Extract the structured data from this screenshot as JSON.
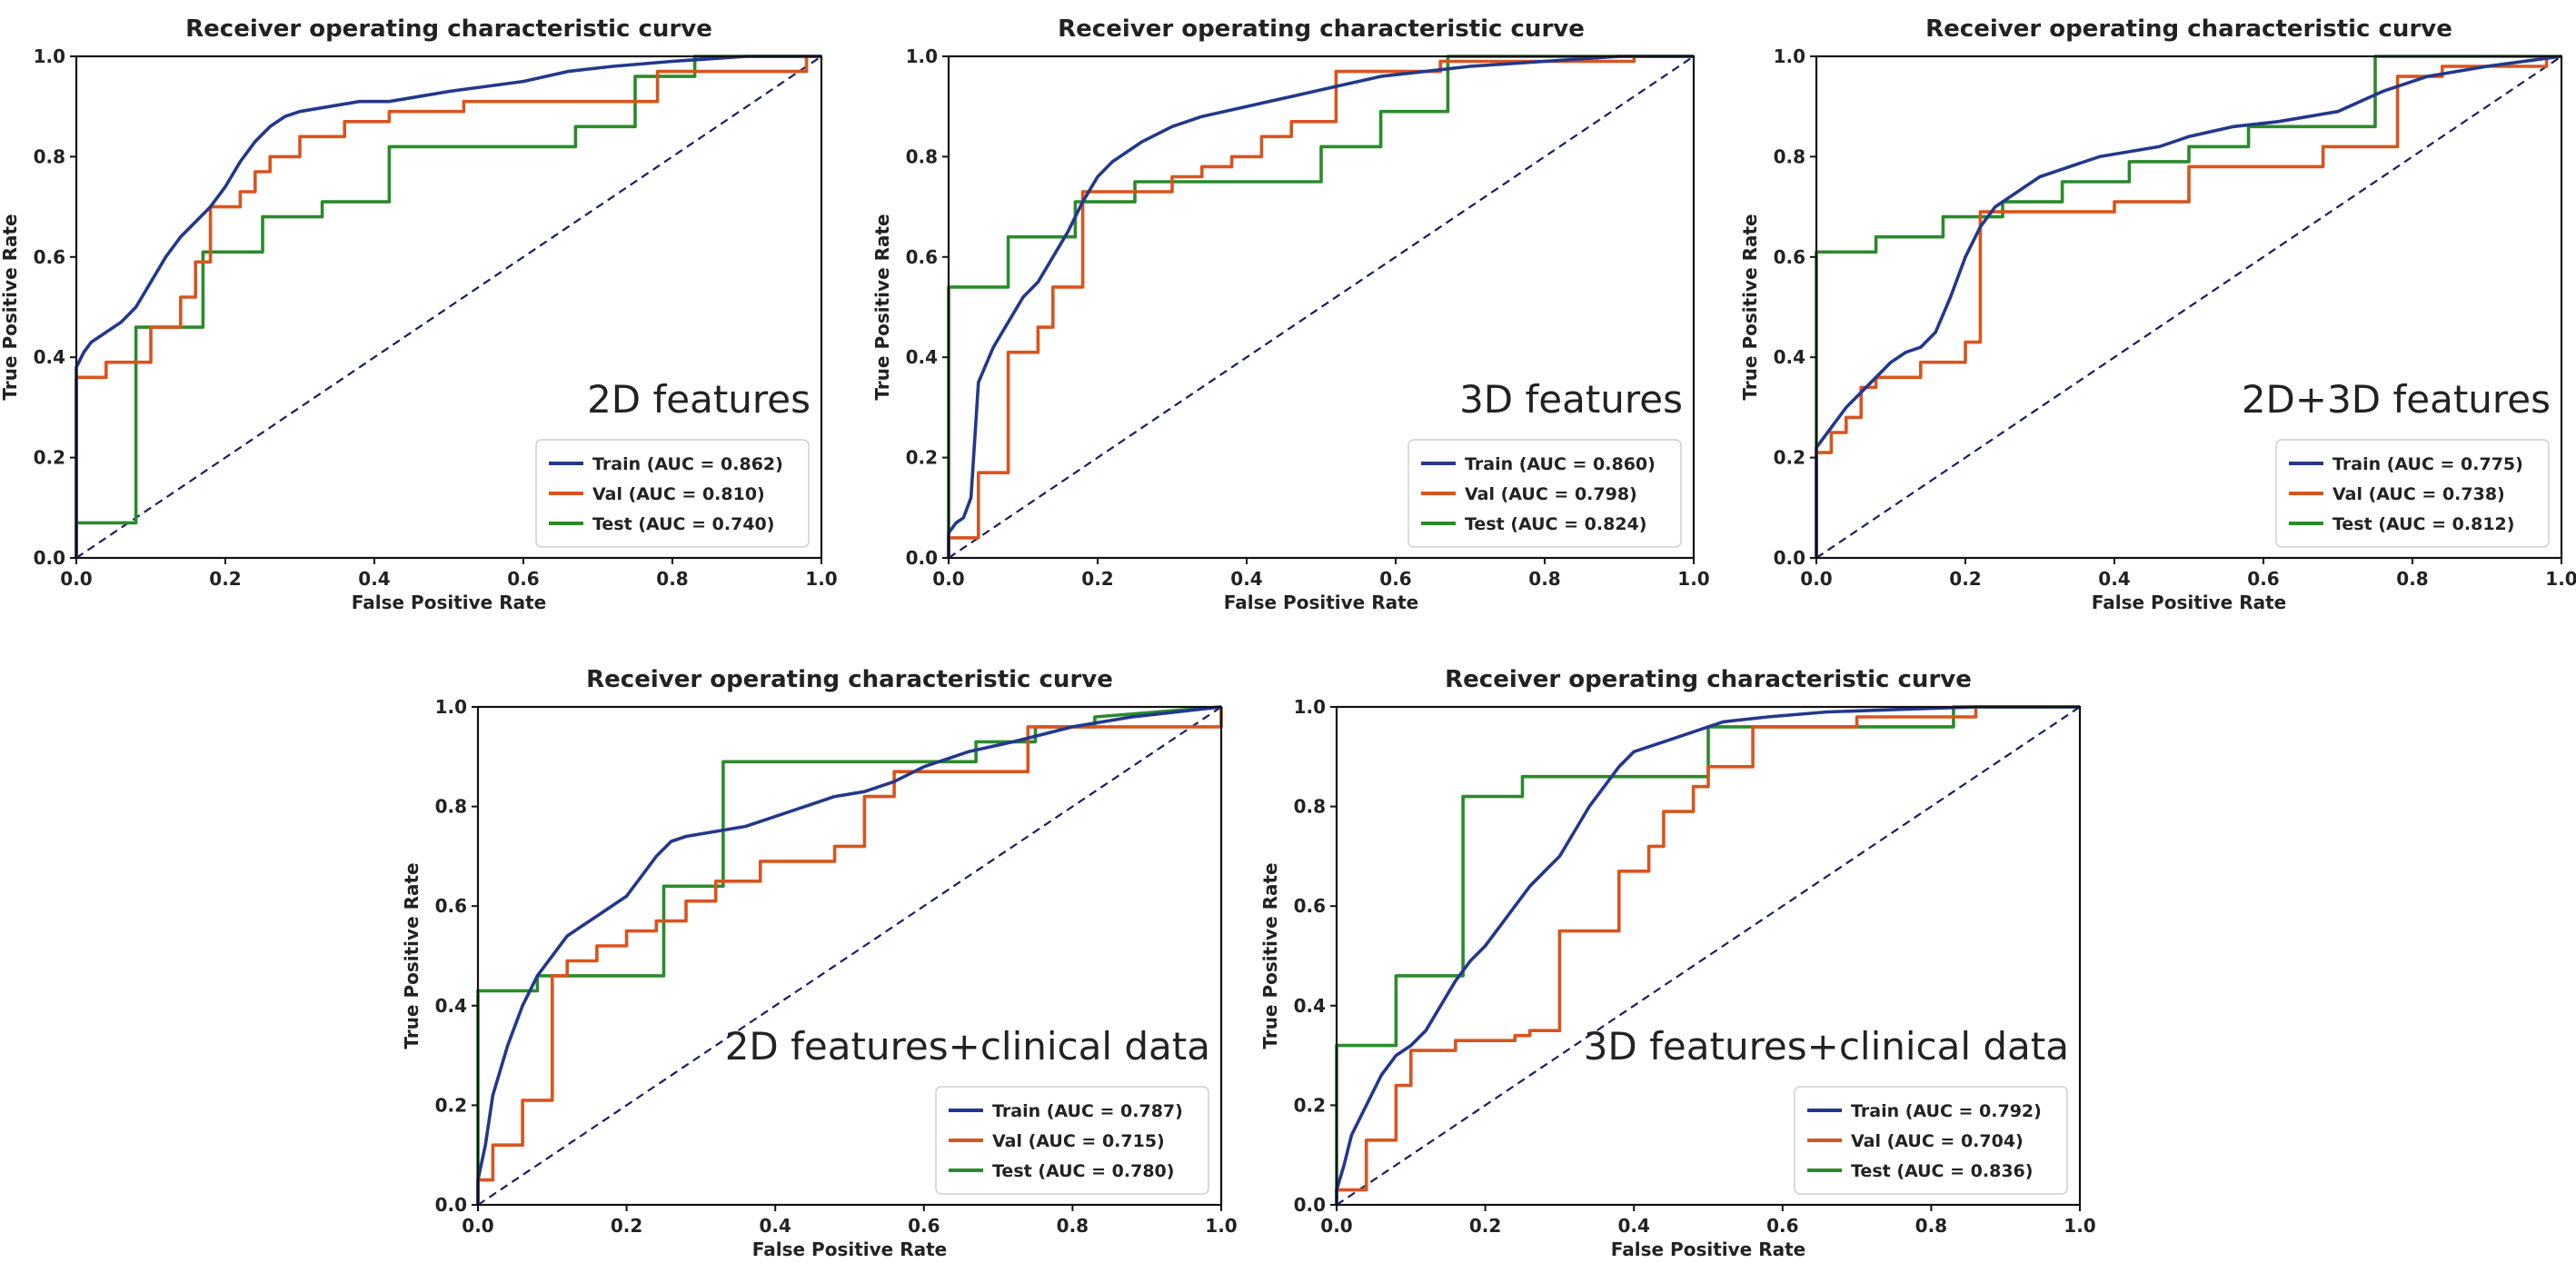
{
  "colors": {
    "train": "#23388c",
    "val": "#d9541e",
    "test": "#2b8a2b",
    "chance": "#1a1f5c",
    "axis": "#111111"
  },
  "chart_data": [
    {
      "type": "line",
      "title": "Receiver operating characteristic curve",
      "xlabel": "False Positive Rate",
      "ylabel": "True Positive Rate",
      "xlim": [
        0,
        1
      ],
      "ylim": [
        0,
        1
      ],
      "ticks": [
        "0.0",
        "0.2",
        "0.4",
        "0.6",
        "0.8",
        "1.0"
      ],
      "panel_label": "2D features",
      "legend_position": "lower-right",
      "series": [
        {
          "key": "train",
          "name": "Train (AUC = 0.862)",
          "x": [
            0,
            0,
            0.01,
            0.02,
            0.04,
            0.06,
            0.08,
            0.1,
            0.12,
            0.14,
            0.16,
            0.18,
            0.2,
            0.22,
            0.24,
            0.26,
            0.28,
            0.3,
            0.34,
            0.38,
            0.42,
            0.46,
            0.5,
            0.55,
            0.6,
            0.66,
            0.72,
            0.8,
            0.9,
            1.0
          ],
          "y": [
            0,
            0.38,
            0.41,
            0.43,
            0.45,
            0.47,
            0.5,
            0.55,
            0.6,
            0.64,
            0.67,
            0.7,
            0.74,
            0.79,
            0.83,
            0.86,
            0.88,
            0.89,
            0.9,
            0.91,
            0.91,
            0.92,
            0.93,
            0.94,
            0.95,
            0.97,
            0.98,
            0.99,
            1.0,
            1.0
          ]
        },
        {
          "key": "val",
          "name": "Val (AUC = 0.810)",
          "x": [
            0,
            0,
            0.04,
            0.04,
            0.1,
            0.1,
            0.14,
            0.14,
            0.16,
            0.16,
            0.18,
            0.18,
            0.22,
            0.22,
            0.24,
            0.24,
            0.26,
            0.26,
            0.3,
            0.3,
            0.36,
            0.36,
            0.42,
            0.42,
            0.52,
            0.52,
            0.78,
            0.78,
            0.98,
            0.98
          ],
          "y": [
            0,
            0.36,
            0.36,
            0.39,
            0.39,
            0.46,
            0.46,
            0.52,
            0.52,
            0.59,
            0.59,
            0.7,
            0.7,
            0.73,
            0.73,
            0.77,
            0.77,
            0.8,
            0.8,
            0.84,
            0.84,
            0.87,
            0.87,
            0.89,
            0.89,
            0.91,
            0.91,
            0.97,
            0.97,
            1.0
          ]
        },
        {
          "key": "test",
          "name": "Test (AUC = 0.740)",
          "x": [
            0,
            0,
            0.08,
            0.08,
            0.17,
            0.17,
            0.25,
            0.25,
            0.33,
            0.33,
            0.42,
            0.42,
            0.67,
            0.67,
            0.75,
            0.75,
            0.83,
            0.83,
            1.0
          ],
          "y": [
            0,
            0.07,
            0.07,
            0.46,
            0.46,
            0.61,
            0.61,
            0.68,
            0.68,
            0.71,
            0.71,
            0.82,
            0.82,
            0.86,
            0.86,
            0.96,
            0.96,
            1.0,
            1.0
          ]
        }
      ]
    },
    {
      "type": "line",
      "title": "Receiver operating characteristic curve",
      "xlabel": "False Positive Rate",
      "ylabel": "True Positive Rate",
      "xlim": [
        0,
        1
      ],
      "ylim": [
        0,
        1
      ],
      "ticks": [
        "0.0",
        "0.2",
        "0.4",
        "0.6",
        "0.8",
        "1.0"
      ],
      "panel_label": "3D features",
      "legend_position": "lower-right",
      "series": [
        {
          "key": "train",
          "name": "Train (AUC = 0.860)",
          "x": [
            0,
            0,
            0.01,
            0.02,
            0.03,
            0.04,
            0.06,
            0.08,
            0.1,
            0.12,
            0.14,
            0.16,
            0.18,
            0.2,
            0.22,
            0.26,
            0.3,
            0.34,
            0.4,
            0.46,
            0.52,
            0.58,
            0.64,
            0.7,
            0.8,
            0.9,
            1.0
          ],
          "y": [
            0,
            0.05,
            0.07,
            0.08,
            0.12,
            0.35,
            0.42,
            0.47,
            0.52,
            0.55,
            0.6,
            0.65,
            0.71,
            0.76,
            0.79,
            0.83,
            0.86,
            0.88,
            0.9,
            0.92,
            0.94,
            0.96,
            0.97,
            0.98,
            0.99,
            1.0,
            1.0
          ]
        },
        {
          "key": "val",
          "name": "Val (AUC = 0.798)",
          "x": [
            0,
            0,
            0.04,
            0.04,
            0.08,
            0.08,
            0.12,
            0.12,
            0.14,
            0.14,
            0.18,
            0.18,
            0.3,
            0.3,
            0.34,
            0.34,
            0.38,
            0.38,
            0.42,
            0.42,
            0.46,
            0.46,
            0.52,
            0.52,
            0.66,
            0.66,
            0.92,
            0.92
          ],
          "y": [
            0,
            0.04,
            0.04,
            0.17,
            0.17,
            0.41,
            0.41,
            0.46,
            0.46,
            0.54,
            0.54,
            0.73,
            0.73,
            0.76,
            0.76,
            0.78,
            0.78,
            0.8,
            0.8,
            0.84,
            0.84,
            0.87,
            0.87,
            0.97,
            0.97,
            0.99,
            0.99,
            1.0
          ]
        },
        {
          "key": "test",
          "name": "Test (AUC = 0.824)",
          "x": [
            0,
            0,
            0.08,
            0.08,
            0.17,
            0.17,
            0.25,
            0.25,
            0.5,
            0.5,
            0.58,
            0.58,
            0.67,
            0.67,
            1.0
          ],
          "y": [
            0,
            0.54,
            0.54,
            0.64,
            0.64,
            0.71,
            0.71,
            0.75,
            0.75,
            0.82,
            0.82,
            0.89,
            0.89,
            1.0,
            1.0
          ]
        }
      ]
    },
    {
      "type": "line",
      "title": "Receiver operating characteristic curve",
      "xlabel": "False Positive Rate",
      "ylabel": "True Positive Rate",
      "xlim": [
        0,
        1
      ],
      "ylim": [
        0,
        1
      ],
      "ticks": [
        "0.0",
        "0.2",
        "0.4",
        "0.6",
        "0.8",
        "1.0"
      ],
      "panel_label": "2D+3D features",
      "legend_position": "lower-right",
      "series": [
        {
          "key": "train",
          "name": "Train (AUC = 0.775)",
          "x": [
            0,
            0,
            0.02,
            0.04,
            0.06,
            0.08,
            0.1,
            0.12,
            0.14,
            0.16,
            0.18,
            0.2,
            0.22,
            0.24,
            0.26,
            0.28,
            0.3,
            0.34,
            0.38,
            0.42,
            0.46,
            0.5,
            0.56,
            0.62,
            0.7,
            0.76,
            0.82,
            0.9,
            1.0
          ],
          "y": [
            0,
            0.22,
            0.26,
            0.3,
            0.33,
            0.36,
            0.39,
            0.41,
            0.42,
            0.45,
            0.52,
            0.6,
            0.66,
            0.7,
            0.72,
            0.74,
            0.76,
            0.78,
            0.8,
            0.81,
            0.82,
            0.84,
            0.86,
            0.87,
            0.89,
            0.93,
            0.96,
            0.98,
            1.0
          ]
        },
        {
          "key": "val",
          "name": "Val (AUC = 0.738)",
          "x": [
            0,
            0,
            0.02,
            0.02,
            0.04,
            0.04,
            0.06,
            0.06,
            0.08,
            0.08,
            0.14,
            0.14,
            0.2,
            0.2,
            0.22,
            0.22,
            0.4,
            0.4,
            0.5,
            0.5,
            0.68,
            0.68,
            0.78,
            0.78,
            0.84,
            0.84,
            0.98,
            0.98
          ],
          "y": [
            0,
            0.21,
            0.21,
            0.25,
            0.25,
            0.28,
            0.28,
            0.34,
            0.34,
            0.36,
            0.36,
            0.39,
            0.39,
            0.43,
            0.43,
            0.69,
            0.69,
            0.71,
            0.71,
            0.78,
            0.78,
            0.82,
            0.82,
            0.96,
            0.96,
            0.98,
            0.98,
            1.0
          ]
        },
        {
          "key": "test",
          "name": "Test (AUC = 0.812)",
          "x": [
            0,
            0,
            0.08,
            0.08,
            0.17,
            0.17,
            0.25,
            0.25,
            0.33,
            0.33,
            0.42,
            0.42,
            0.5,
            0.5,
            0.58,
            0.58,
            0.75,
            0.75,
            1.0
          ],
          "y": [
            0,
            0.61,
            0.61,
            0.64,
            0.64,
            0.68,
            0.68,
            0.71,
            0.71,
            0.75,
            0.75,
            0.79,
            0.79,
            0.82,
            0.82,
            0.86,
            0.86,
            1.0,
            1.0
          ]
        }
      ]
    },
    {
      "type": "line",
      "title": "Receiver operating characteristic curve",
      "xlabel": "False Positive Rate",
      "ylabel": "True Positive Rate",
      "xlim": [
        0,
        1
      ],
      "ylim": [
        0,
        1
      ],
      "ticks": [
        "0.0",
        "0.2",
        "0.4",
        "0.6",
        "0.8",
        "1.0"
      ],
      "panel_label": "2D features+clinical data",
      "legend_position": "lower-right",
      "series": [
        {
          "key": "train",
          "name": "Train (AUC = 0.787)",
          "x": [
            0,
            0,
            0.01,
            0.02,
            0.04,
            0.06,
            0.08,
            0.1,
            0.12,
            0.14,
            0.16,
            0.18,
            0.2,
            0.22,
            0.24,
            0.26,
            0.28,
            0.32,
            0.36,
            0.4,
            0.44,
            0.48,
            0.52,
            0.56,
            0.6,
            0.66,
            0.72,
            0.8,
            0.88,
            1.0
          ],
          "y": [
            0,
            0.05,
            0.12,
            0.22,
            0.32,
            0.4,
            0.46,
            0.5,
            0.54,
            0.56,
            0.58,
            0.6,
            0.62,
            0.66,
            0.7,
            0.73,
            0.74,
            0.75,
            0.76,
            0.78,
            0.8,
            0.82,
            0.83,
            0.85,
            0.88,
            0.91,
            0.93,
            0.96,
            0.98,
            1.0
          ]
        },
        {
          "key": "val",
          "name": "Val (AUC = 0.715)",
          "x": [
            0,
            0,
            0.02,
            0.02,
            0.06,
            0.06,
            0.1,
            0.1,
            0.12,
            0.12,
            0.16,
            0.16,
            0.2,
            0.2,
            0.24,
            0.24,
            0.28,
            0.28,
            0.32,
            0.32,
            0.38,
            0.38,
            0.48,
            0.48,
            0.52,
            0.52,
            0.56,
            0.56,
            0.74,
            0.74,
            1.0,
            1.0
          ],
          "y": [
            0,
            0.05,
            0.05,
            0.12,
            0.12,
            0.21,
            0.21,
            0.46,
            0.46,
            0.49,
            0.49,
            0.52,
            0.52,
            0.55,
            0.55,
            0.57,
            0.57,
            0.61,
            0.61,
            0.65,
            0.65,
            0.69,
            0.69,
            0.72,
            0.72,
            0.82,
            0.82,
            0.87,
            0.87,
            0.96,
            0.96,
            1.0
          ]
        },
        {
          "key": "test",
          "name": "Test (AUC = 0.780)",
          "x": [
            0,
            0,
            0.08,
            0.08,
            0.25,
            0.25,
            0.33,
            0.33,
            0.67,
            0.67,
            0.75,
            0.75,
            0.83,
            0.83,
            1.0
          ],
          "y": [
            0,
            0.43,
            0.43,
            0.46,
            0.46,
            0.64,
            0.64,
            0.89,
            0.89,
            0.93,
            0.93,
            0.96,
            0.96,
            0.98,
            1.0
          ]
        }
      ]
    },
    {
      "type": "line",
      "title": "Receiver operating characteristic curve",
      "xlabel": "False Positive Rate",
      "ylabel": "True Positive Rate",
      "xlim": [
        0,
        1
      ],
      "ylim": [
        0,
        1
      ],
      "ticks": [
        "0.0",
        "0.2",
        "0.4",
        "0.6",
        "0.8",
        "1.0"
      ],
      "panel_label": "3D features+clinical data",
      "legend_position": "lower-right",
      "series": [
        {
          "key": "train",
          "name": "Train (AUC = 0.792)",
          "x": [
            0,
            0,
            0.01,
            0.02,
            0.04,
            0.06,
            0.08,
            0.1,
            0.12,
            0.14,
            0.16,
            0.18,
            0.2,
            0.22,
            0.24,
            0.26,
            0.28,
            0.3,
            0.32,
            0.34,
            0.36,
            0.38,
            0.4,
            0.44,
            0.48,
            0.52,
            0.58,
            0.66,
            0.76,
            0.86,
            1.0
          ],
          "y": [
            0,
            0.03,
            0.08,
            0.14,
            0.2,
            0.26,
            0.3,
            0.32,
            0.35,
            0.4,
            0.45,
            0.49,
            0.52,
            0.56,
            0.6,
            0.64,
            0.67,
            0.7,
            0.75,
            0.8,
            0.84,
            0.88,
            0.91,
            0.93,
            0.95,
            0.97,
            0.98,
            0.99,
            0.995,
            1.0,
            1.0
          ]
        },
        {
          "key": "val",
          "name": "Val (AUC = 0.704)",
          "x": [
            0,
            0,
            0.04,
            0.04,
            0.08,
            0.08,
            0.1,
            0.1,
            0.16,
            0.16,
            0.24,
            0.24,
            0.26,
            0.26,
            0.3,
            0.3,
            0.38,
            0.38,
            0.42,
            0.42,
            0.44,
            0.44,
            0.48,
            0.48,
            0.5,
            0.5,
            0.56,
            0.56,
            0.7,
            0.7,
            0.86,
            0.86
          ],
          "y": [
            0,
            0.03,
            0.03,
            0.13,
            0.13,
            0.24,
            0.24,
            0.31,
            0.31,
            0.33,
            0.33,
            0.34,
            0.34,
            0.35,
            0.35,
            0.55,
            0.55,
            0.67,
            0.67,
            0.72,
            0.72,
            0.79,
            0.79,
            0.84,
            0.84,
            0.88,
            0.88,
            0.96,
            0.96,
            0.98,
            0.98,
            1.0
          ]
        },
        {
          "key": "test",
          "name": "Test (AUC = 0.836)",
          "x": [
            0,
            0,
            0.08,
            0.08,
            0.17,
            0.17,
            0.25,
            0.25,
            0.5,
            0.5,
            0.83,
            0.83,
            1.0
          ],
          "y": [
            0,
            0.32,
            0.32,
            0.46,
            0.46,
            0.82,
            0.82,
            0.86,
            0.86,
            0.96,
            0.96,
            1.0,
            1.0
          ]
        }
      ]
    }
  ]
}
